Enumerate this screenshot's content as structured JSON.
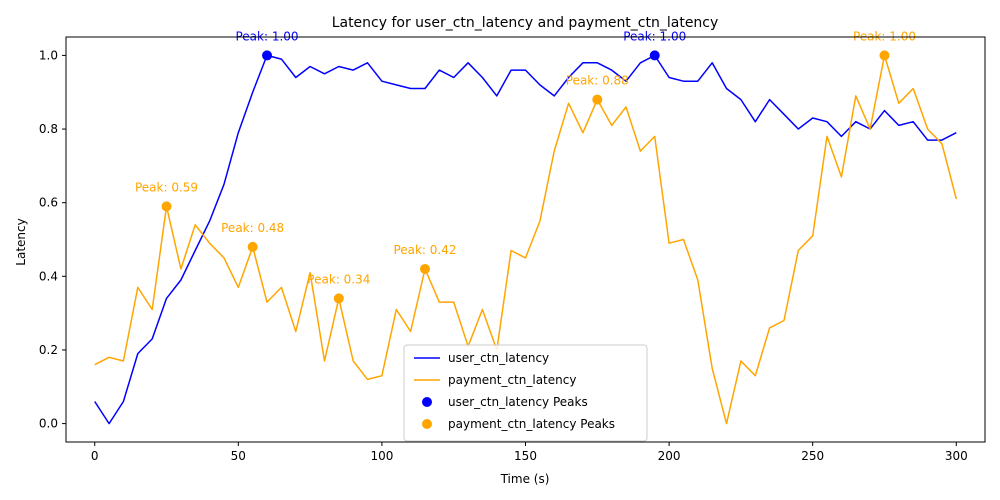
{
  "chart_data": {
    "type": "line",
    "title": "Latency for user_ctn_latency and payment_ctn_latency",
    "xlabel": "Time (s)",
    "ylabel": "Latency",
    "xlim": [
      -10,
      310
    ],
    "ylim": [
      -0.05,
      1.05
    ],
    "xticks": [
      0,
      50,
      100,
      150,
      200,
      250,
      300
    ],
    "yticks": [
      0.0,
      0.2,
      0.4,
      0.6,
      0.8,
      1.0
    ],
    "grid": false,
    "legend_position": "lower-center",
    "series": [
      {
        "name": "user_ctn_latency",
        "color": "#0000ff",
        "x": [
          0,
          5,
          10,
          15,
          20,
          25,
          30,
          35,
          40,
          45,
          50,
          55,
          60,
          65,
          70,
          75,
          80,
          85,
          90,
          95,
          100,
          105,
          110,
          115,
          120,
          125,
          130,
          135,
          140,
          145,
          150,
          155,
          160,
          165,
          170,
          175,
          180,
          185,
          190,
          195,
          200,
          205,
          210,
          215,
          220,
          225,
          230,
          235,
          240,
          245,
          250,
          255,
          260,
          265,
          270,
          275,
          280,
          285,
          290,
          295,
          300
        ],
        "y": [
          0.06,
          0.0,
          0.06,
          0.19,
          0.23,
          0.34,
          0.39,
          0.47,
          0.55,
          0.65,
          0.79,
          0.9,
          1.0,
          0.99,
          0.94,
          0.97,
          0.95,
          0.97,
          0.96,
          0.98,
          0.93,
          0.92,
          0.91,
          0.91,
          0.96,
          0.94,
          0.98,
          0.94,
          0.89,
          0.96,
          0.96,
          0.92,
          0.89,
          0.94,
          0.98,
          0.98,
          0.96,
          0.93,
          0.98,
          1.0,
          0.94,
          0.93,
          0.93,
          0.98,
          0.91,
          0.88,
          0.82,
          0.88,
          0.84,
          0.8,
          0.83,
          0.82,
          0.78,
          0.82,
          0.8,
          0.85,
          0.81,
          0.82,
          0.77,
          0.77,
          0.79
        ]
      },
      {
        "name": "payment_ctn_latency",
        "color": "#ffa500",
        "x": [
          0,
          5,
          10,
          15,
          20,
          25,
          30,
          35,
          40,
          45,
          50,
          55,
          60,
          65,
          70,
          75,
          80,
          85,
          90,
          95,
          100,
          105,
          110,
          115,
          120,
          125,
          130,
          135,
          140,
          145,
          150,
          155,
          160,
          165,
          170,
          175,
          180,
          185,
          190,
          195,
          200,
          205,
          210,
          215,
          220,
          225,
          230,
          235,
          240,
          245,
          250,
          255,
          260,
          265,
          270,
          275,
          280,
          285,
          290,
          295,
          300
        ],
        "y": [
          0.16,
          0.18,
          0.17,
          0.37,
          0.31,
          0.59,
          0.42,
          0.54,
          0.49,
          0.45,
          0.37,
          0.48,
          0.33,
          0.37,
          0.25,
          0.41,
          0.17,
          0.34,
          0.17,
          0.12,
          0.13,
          0.31,
          0.25,
          0.42,
          0.33,
          0.33,
          0.21,
          0.31,
          0.2,
          0.47,
          0.45,
          0.55,
          0.74,
          0.87,
          0.79,
          0.88,
          0.81,
          0.86,
          0.74,
          0.78,
          0.49,
          0.5,
          0.39,
          0.15,
          0.0,
          0.17,
          0.13,
          0.26,
          0.28,
          0.47,
          0.51,
          0.78,
          0.67,
          0.89,
          0.8,
          1.0,
          0.87,
          0.91,
          0.8,
          0.76,
          0.61
        ]
      }
    ],
    "peaks": [
      {
        "series": "user_ctn_latency",
        "x": 60,
        "y": 1.0,
        "label": "Peak: 1.00",
        "color": "#0000ff"
      },
      {
        "series": "user_ctn_latency",
        "x": 195,
        "y": 1.0,
        "label": "Peak: 1.00",
        "color": "#0000ff"
      },
      {
        "series": "payment_ctn_latency",
        "x": 25,
        "y": 0.59,
        "label": "Peak: 0.59",
        "color": "#ffa500"
      },
      {
        "series": "payment_ctn_latency",
        "x": 55,
        "y": 0.48,
        "label": "Peak: 0.48",
        "color": "#ffa500"
      },
      {
        "series": "payment_ctn_latency",
        "x": 85,
        "y": 0.34,
        "label": "Peak: 0.34",
        "color": "#ffa500"
      },
      {
        "series": "payment_ctn_latency",
        "x": 115,
        "y": 0.42,
        "label": "Peak: 0.42",
        "color": "#ffa500"
      },
      {
        "series": "payment_ctn_latency",
        "x": 175,
        "y": 0.88,
        "label": "Peak: 0.88",
        "color": "#ffa500"
      },
      {
        "series": "payment_ctn_latency",
        "x": 275,
        "y": 1.0,
        "label": "Peak: 1.00",
        "color": "#ffa500"
      }
    ],
    "legend": [
      {
        "label": "user_ctn_latency",
        "kind": "line",
        "color": "#0000ff"
      },
      {
        "label": "payment_ctn_latency",
        "kind": "line",
        "color": "#ffa500"
      },
      {
        "label": "user_ctn_latency Peaks",
        "kind": "marker",
        "color": "#0000ff"
      },
      {
        "label": "payment_ctn_latency Peaks",
        "kind": "marker",
        "color": "#ffa500"
      }
    ]
  }
}
